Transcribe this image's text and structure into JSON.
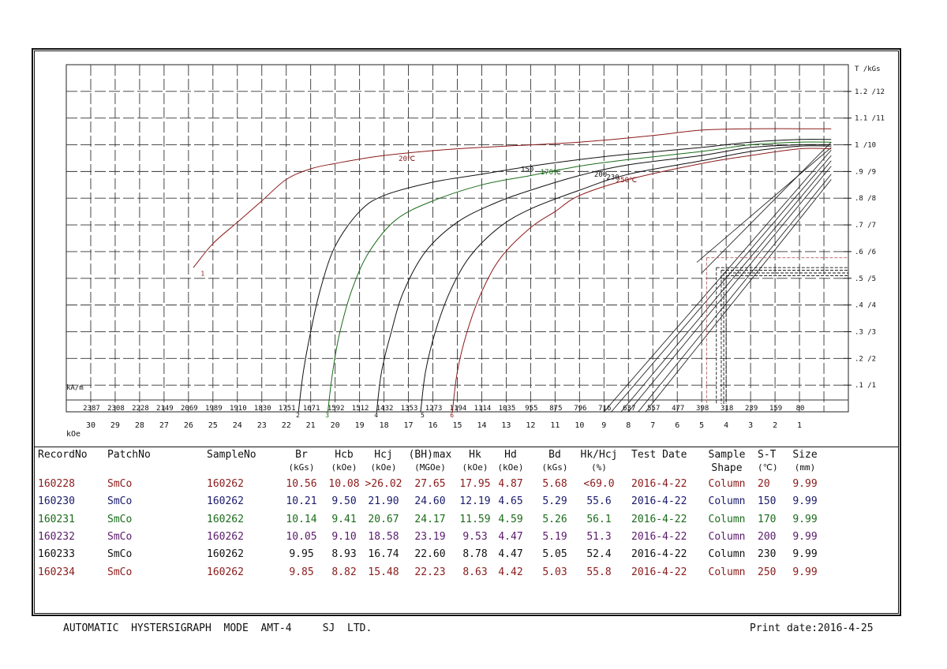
{
  "chart_data": {
    "type": "line",
    "title": "",
    "xlabel": "kOe",
    "x_secondary_label": "kA/m",
    "ylabel": "T /kGs",
    "xlim": [
      31,
      -1
    ],
    "ylim": [
      0,
      13
    ],
    "grid": true,
    "x_ticks": [
      30,
      29,
      28,
      27,
      26,
      25,
      24,
      23,
      22,
      21,
      20,
      19,
      18,
      17,
      16,
      15,
      14,
      13,
      12,
      11,
      10,
      9,
      8,
      7,
      6,
      5,
      4,
      3,
      2,
      1
    ],
    "x_tick_labels": [
      "30",
      "29",
      "28",
      "27",
      "26",
      "25",
      "24",
      "23",
      "22",
      "21",
      "20",
      "19",
      "18",
      "17",
      "16",
      "15",
      "14",
      "13",
      "12",
      "11",
      "10",
      "9",
      "8",
      "7",
      "6",
      "5",
      "4",
      "3",
      "2",
      "1"
    ],
    "x2_tick_labels": [
      "2387",
      "2308",
      "2228",
      "2149",
      "2069",
      "1989",
      "1910",
      "1830",
      "1751",
      "1671",
      "1592",
      "1512",
      "1432",
      "1353",
      "1273",
      "1194",
      "1114",
      "1035",
      "955",
      "875",
      "796",
      "716",
      "637",
      "557",
      "477",
      "398",
      "318",
      "239",
      "159",
      "80"
    ],
    "y_ticks": [
      1,
      2,
      3,
      4,
      5,
      6,
      7,
      8,
      9,
      10,
      11,
      12
    ],
    "y_tick_labels": [
      ".1 /1",
      ".2 /2",
      ".3 /3",
      ".4 /4",
      ".5 /5",
      ".6 /6",
      ".7 /7",
      ".8 /8",
      ".9 /9",
      "1 /10",
      "1.1 /11",
      "1.2 /12"
    ],
    "series": [
      {
        "name": "20℃",
        "label": "20℃",
        "label_at": [
          17.4,
          9.4
        ],
        "marker_label": "1",
        "marker_at": [
          25.5,
          5.1
        ],
        "color": "#8b1a1a",
        "points": [
          [
            25.8,
            5.4
          ],
          [
            25,
            6.3
          ],
          [
            24,
            7.1
          ],
          [
            23,
            7.9
          ],
          [
            22,
            8.7
          ],
          [
            21,
            9.1
          ],
          [
            20,
            9.3
          ],
          [
            18,
            9.6
          ],
          [
            15,
            9.85
          ],
          [
            10,
            10.1
          ],
          [
            7,
            10.35
          ],
          [
            5,
            10.55
          ],
          [
            3,
            10.6
          ],
          [
            1,
            10.6
          ],
          [
            -0.3,
            10.6
          ]
        ]
      },
      {
        "name": "150",
        "label": "150",
        "label_at": [
          12.4,
          9.0
        ],
        "marker_label": "2",
        "marker_at": [
          21.6,
          -0.2
        ],
        "color": "#111111",
        "points": [
          [
            21.5,
            0
          ],
          [
            21.3,
            1.5
          ],
          [
            21,
            3
          ],
          [
            20.6,
            4.6
          ],
          [
            20,
            6.2
          ],
          [
            19,
            7.5
          ],
          [
            18,
            8.1
          ],
          [
            16,
            8.6
          ],
          [
            14,
            8.9
          ],
          [
            12,
            9.2
          ],
          [
            10,
            9.45
          ],
          [
            8,
            9.65
          ],
          [
            5,
            9.9
          ],
          [
            3,
            10.1
          ],
          [
            1,
            10.2
          ],
          [
            -0.3,
            10.2
          ]
        ]
      },
      {
        "name": "170℃",
        "label": "170℃",
        "label_at": [
          11.6,
          8.9
        ],
        "marker_label": "3",
        "marker_at": [
          20.4,
          -0.2
        ],
        "color": "#1a6b1a",
        "points": [
          [
            20.3,
            0
          ],
          [
            20.1,
            1.5
          ],
          [
            19.8,
            3
          ],
          [
            19.3,
            4.6
          ],
          [
            18.6,
            6
          ],
          [
            17.5,
            7.2
          ],
          [
            16,
            7.9
          ],
          [
            14,
            8.5
          ],
          [
            12,
            8.85
          ],
          [
            10,
            9.2
          ],
          [
            8,
            9.45
          ],
          [
            5,
            9.75
          ],
          [
            3,
            10.0
          ],
          [
            1,
            10.1
          ],
          [
            -0.3,
            10.1
          ]
        ]
      },
      {
        "name": "200",
        "label": "200",
        "label_at": [
          9.4,
          8.8
        ],
        "marker_label": "4",
        "marker_at": [
          18.4,
          -0.2
        ],
        "color": "#111111",
        "points": [
          [
            18.3,
            0
          ],
          [
            18.1,
            1.5
          ],
          [
            17.7,
            3
          ],
          [
            17.2,
            4.5
          ],
          [
            16.3,
            6
          ],
          [
            15,
            7.1
          ],
          [
            13.5,
            7.8
          ],
          [
            12,
            8.3
          ],
          [
            10,
            8.85
          ],
          [
            8,
            9.25
          ],
          [
            5,
            9.6
          ],
          [
            3,
            9.9
          ],
          [
            1,
            10.0
          ],
          [
            -0.3,
            10.0
          ]
        ]
      },
      {
        "name": "230",
        "label": "230",
        "label_at": [
          8.9,
          8.7
        ],
        "marker_label": "5",
        "marker_at": [
          16.5,
          -0.2
        ],
        "color": "#111111",
        "points": [
          [
            16.5,
            0
          ],
          [
            16.3,
            1.5
          ],
          [
            15.9,
            3
          ],
          [
            15.3,
            4.5
          ],
          [
            14.5,
            5.8
          ],
          [
            13.3,
            6.9
          ],
          [
            12,
            7.6
          ],
          [
            10,
            8.3
          ],
          [
            8,
            8.9
          ],
          [
            5,
            9.4
          ],
          [
            3,
            9.75
          ],
          [
            1,
            9.95
          ],
          [
            -0.3,
            9.95
          ]
        ]
      },
      {
        "name": "250℃",
        "label": "250℃",
        "label_at": [
          8.5,
          8.6
        ],
        "marker_label": "6",
        "marker_at": [
          15.3,
          -0.2
        ],
        "color": "#8b1a1a",
        "points": [
          [
            15.2,
            0
          ],
          [
            15,
            1.5
          ],
          [
            14.6,
            3
          ],
          [
            14,
            4.5
          ],
          [
            13.2,
            5.8
          ],
          [
            12,
            6.9
          ],
          [
            11,
            7.5
          ],
          [
            10,
            8.1
          ],
          [
            8,
            8.7
          ],
          [
            5,
            9.3
          ],
          [
            3,
            9.6
          ],
          [
            1,
            9.85
          ],
          [
            -0.3,
            9.85
          ]
        ]
      }
    ],
    "load_lines": [
      {
        "color": "#111111",
        "points": [
          [
            9.0,
            0.0
          ],
          [
            -0.3,
            9.8
          ]
        ]
      },
      {
        "color": "#111111",
        "points": [
          [
            8.7,
            0.0
          ],
          [
            -0.3,
            9.6
          ]
        ]
      },
      {
        "color": "#111111",
        "points": [
          [
            8.3,
            0.0
          ],
          [
            -0.3,
            9.4
          ]
        ]
      },
      {
        "color": "#111111",
        "points": [
          [
            8.0,
            0.0
          ],
          [
            -0.3,
            9.2
          ]
        ]
      },
      {
        "color": "#111111",
        "points": [
          [
            7.6,
            0.0
          ],
          [
            -0.3,
            8.9
          ]
        ]
      },
      {
        "color": "#111111",
        "points": [
          [
            7.3,
            0.0
          ],
          [
            -0.3,
            8.7
          ]
        ]
      },
      {
        "color": "#111111",
        "points": [
          [
            5.2,
            5.6
          ],
          [
            -0.3,
            9.9
          ]
        ]
      },
      {
        "color": "#111111",
        "points": [
          [
            5.0,
            5.2
          ],
          [
            -0.3,
            10.1
          ]
        ]
      }
    ],
    "knee_markers": [
      {
        "color": "#b06060",
        "x": 4.8,
        "y": 5.77
      },
      {
        "color": "#111111",
        "x": 4.4,
        "y": 5.4
      },
      {
        "color": "#111111",
        "x": 4.2,
        "y": 5.3
      },
      {
        "color": "#111111",
        "x": 4.1,
        "y": 5.2
      },
      {
        "color": "#111111",
        "x": 4.0,
        "y": 5.1
      }
    ]
  },
  "table": {
    "columns": [
      {
        "name": "RecordNo",
        "unit": ""
      },
      {
        "name": "PatchNo",
        "unit": ""
      },
      {
        "name": "SampleNo",
        "unit": ""
      },
      {
        "name": "Br",
        "unit": "(kGs)"
      },
      {
        "name": "Hcb",
        "unit": "(kOe)"
      },
      {
        "name": "Hcj",
        "unit": "(kOe)"
      },
      {
        "name": "(BH)max",
        "unit": "(MGOe)"
      },
      {
        "name": "Hk",
        "unit": "(kOe)"
      },
      {
        "name": "Hd",
        "unit": "(kOe)"
      },
      {
        "name": "Bd",
        "unit": "(kGs)"
      },
      {
        "name": "Hk/Hcj",
        "unit": "(%)"
      },
      {
        "name": "Test Date",
        "unit": ""
      },
      {
        "name": "Sample",
        "unit": "Shape"
      },
      {
        "name": "S-T",
        "unit": "(℃)"
      },
      {
        "name": "Size",
        "unit": "(mm)"
      }
    ],
    "rows": [
      {
        "color": "#8b1a1a",
        "cells": [
          "160228",
          "SmCo",
          "160262",
          "10.56",
          "10.08",
          ">26.02",
          "27.65",
          "17.95",
          "4.87",
          "5.68",
          "<69.0",
          "2016-4-22",
          "Column",
          "20",
          "9.99"
        ]
      },
      {
        "color": "#1a1a6b",
        "cells": [
          "160230",
          "SmCo",
          "160262",
          "10.21",
          "9.50",
          "21.90",
          "24.60",
          "12.19",
          "4.65",
          "5.29",
          "55.6",
          "2016-4-22",
          "Column",
          "150",
          "9.99"
        ]
      },
      {
        "color": "#1a6b1a",
        "cells": [
          "160231",
          "SmCo",
          "160262",
          "10.14",
          "9.41",
          "20.67",
          "24.17",
          "11.59",
          "4.59",
          "5.26",
          "56.1",
          "2016-4-22",
          "Column",
          "170",
          "9.99"
        ]
      },
      {
        "color": "#5a1a6b",
        "cells": [
          "160232",
          "SmCo",
          "160262",
          "10.05",
          "9.10",
          "18.58",
          "23.19",
          "9.53",
          "4.47",
          "5.19",
          "51.3",
          "2016-4-22",
          "Column",
          "200",
          "9.99"
        ]
      },
      {
        "color": "#111111",
        "cells": [
          "160233",
          "SmCo",
          "160262",
          "9.95",
          "8.93",
          "16.74",
          "22.60",
          "8.78",
          "4.47",
          "5.05",
          "52.4",
          "2016-4-22",
          "Column",
          "230",
          "9.99"
        ]
      },
      {
        "color": "#8b1a1a",
        "cells": [
          "160234",
          "SmCo",
          "160262",
          "9.85",
          "8.82",
          "15.48",
          "22.23",
          "8.63",
          "4.42",
          "5.03",
          "55.8",
          "2016-4-22",
          "Column",
          "250",
          "9.99"
        ]
      }
    ]
  },
  "footer": {
    "left": "AUTOMATIC  HYSTERSIGRAPH  MODE  AMT-4     SJ  LTD.",
    "right": "Print date:2016-4-25"
  }
}
